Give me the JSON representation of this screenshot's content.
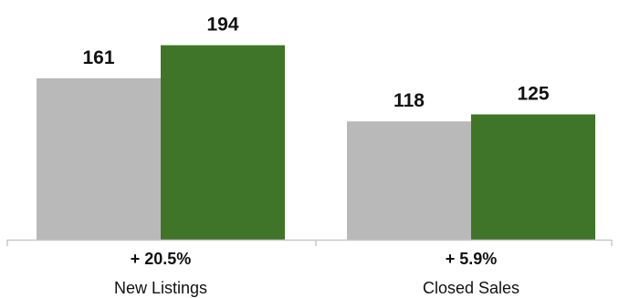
{
  "chart_data": {
    "type": "bar",
    "categories": [
      "New Listings",
      "Closed Sales"
    ],
    "changes": [
      "+ 20.5%",
      "+ 5.9%"
    ],
    "series": [
      {
        "color": "#b9b9b9",
        "values": [
          161,
          118
        ]
      },
      {
        "color": "#3f7528",
        "values": [
          194,
          125
        ]
      }
    ],
    "value_labels": [
      [
        "161",
        "194"
      ],
      [
        "118",
        "125"
      ]
    ],
    "ylim": [
      0,
      230
    ],
    "grid": false,
    "axis_color": "#c8c8c8"
  }
}
